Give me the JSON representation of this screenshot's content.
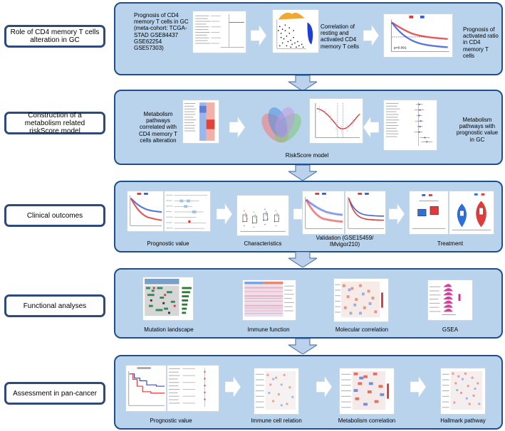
{
  "sections": [
    {
      "label": "Role of CD4 memory T cells alteration in GC",
      "texts": {
        "prognosis": "Prognosis of CD4 memory T cells in GC (meta-cohort: TCGA-STAD GSE84437 GSE62254 GSE57303)",
        "correlation": "Correlation of resting and activated CD4 memory T cells",
        "ratio": "Prognosis of activated ratio in CD4 memory T cells",
        "km_p": "p<0.001"
      }
    },
    {
      "label": "Construction of a metabolism related riskScore model",
      "texts": {
        "pathways_corr": "Metabolism pathways correlated with CD4 memory T cells alteration",
        "riskscore": "RiskScore model",
        "pathways_prog": "Metabolism pathways with prognostic value in GC"
      }
    },
    {
      "label": "Clinical outcomes",
      "captions": {
        "prognostic": "Prognostic value",
        "characteristics": "Characteristics",
        "validation": "Validation (GSE15459/ IMvigor210)",
        "treatment": "Treatment"
      }
    },
    {
      "label": "Functional analyses",
      "captions": {
        "mutation": "Mutation landscape",
        "immune": "Immune function",
        "molecular": "Molecular correlation",
        "gsea": "GSEA"
      }
    },
    {
      "label": "Assessment in pan-cancer",
      "captions": {
        "prognostic": "Prognostic value",
        "immune_cell": "Immune cell relation",
        "metabolism": "Metabolism correlation",
        "hallmark": "Hallmark pathway"
      }
    }
  ],
  "colors": {
    "panel_fill": "#b9d3ec",
    "panel_border": "#1f4e8c",
    "label_border": "#2e4a7d",
    "arrow_fill": "#ffffff",
    "down_arrow_fill": "#bcd2ec",
    "down_arrow_stroke": "#5a7fae",
    "high": "#e03b3b",
    "low": "#3a5fd9"
  }
}
